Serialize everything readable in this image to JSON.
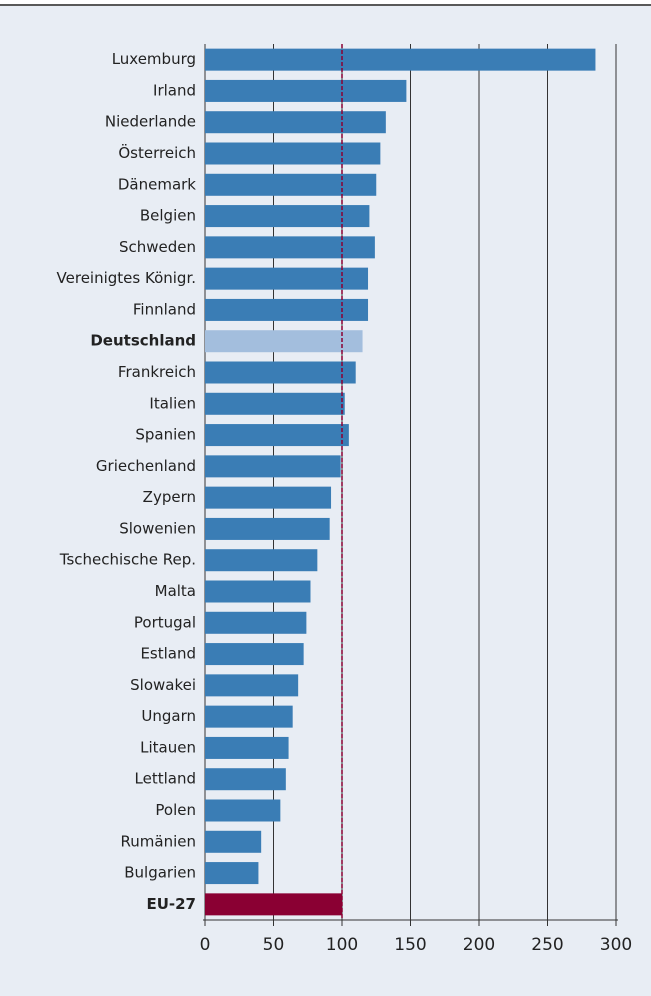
{
  "chart_data": {
    "type": "bar",
    "orientation": "horizontal",
    "categories": [
      "Luxemburg",
      "Irland",
      "Niederlande",
      "Österreich",
      "Dänemark",
      "Belgien",
      "Schweden",
      "Vereinigtes Königr.",
      "Finnland",
      "Deutschland",
      "Frankreich",
      "Italien",
      "Spanien",
      "Griechenland",
      "Zypern",
      "Slowenien",
      "Tschechische Rep.",
      "Malta",
      "Portugal",
      "Estland",
      "Slowakei",
      "Ungarn",
      "Litauen",
      "Lettland",
      "Polen",
      "Rumänien",
      "Bulgarien",
      "EU-27"
    ],
    "values": [
      285,
      147,
      132,
      128,
      125,
      120,
      124,
      119,
      119,
      115,
      110,
      102,
      105,
      99,
      92,
      91,
      82,
      77,
      74,
      72,
      68,
      64,
      61,
      59,
      55,
      41,
      39,
      100
    ],
    "color": "#3a7db5",
    "colors": [
      "#3a7db5",
      "#3a7db5",
      "#3a7db5",
      "#3a7db5",
      "#3a7db5",
      "#3a7db5",
      "#3a7db5",
      "#3a7db5",
      "#3a7db5",
      "#a3bedd",
      "#3a7db5",
      "#3a7db5",
      "#3a7db5",
      "#3a7db5",
      "#3a7db5",
      "#3a7db5",
      "#3a7db5",
      "#3a7db5",
      "#3a7db5",
      "#3a7db5",
      "#3a7db5",
      "#3a7db5",
      "#3a7db5",
      "#3a7db5",
      "#3a7db5",
      "#3a7db5",
      "#3a7db5",
      "#8a0033"
    ],
    "xlim": [
      0,
      300
    ],
    "xticks": [
      0,
      50,
      100,
      150,
      200,
      250,
      300
    ],
    "grid": true,
    "reference_line": 100,
    "reference_color": "#8a0033"
  }
}
